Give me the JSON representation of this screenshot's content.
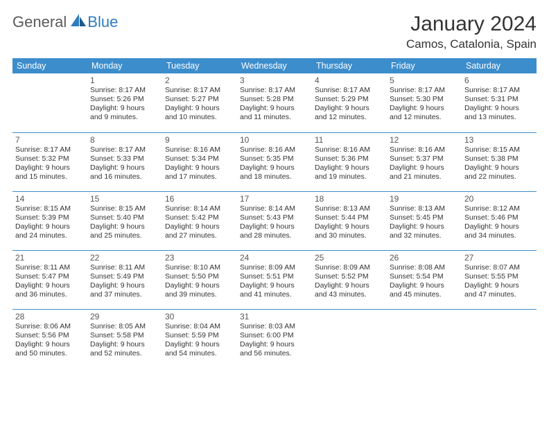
{
  "brand": {
    "word1": "General",
    "word2": "Blue"
  },
  "title": "January 2024",
  "location": "Camos, Catalonia, Spain",
  "colors": {
    "header_bg": "#3c8dcc",
    "header_text": "#ffffff",
    "cell_border": "#3c8dcc",
    "text": "#333333",
    "brand_gray": "#5a5a5a",
    "brand_blue": "#2e7cbf",
    "background": "#ffffff"
  },
  "weekday_headers": [
    "Sunday",
    "Monday",
    "Tuesday",
    "Wednesday",
    "Thursday",
    "Friday",
    "Saturday"
  ],
  "start_weekday": 1,
  "days": [
    {
      "n": "1",
      "sunrise": "8:17 AM",
      "sunset": "5:26 PM",
      "dl1": "Daylight: 9 hours",
      "dl2": "and 9 minutes."
    },
    {
      "n": "2",
      "sunrise": "8:17 AM",
      "sunset": "5:27 PM",
      "dl1": "Daylight: 9 hours",
      "dl2": "and 10 minutes."
    },
    {
      "n": "3",
      "sunrise": "8:17 AM",
      "sunset": "5:28 PM",
      "dl1": "Daylight: 9 hours",
      "dl2": "and 11 minutes."
    },
    {
      "n": "4",
      "sunrise": "8:17 AM",
      "sunset": "5:29 PM",
      "dl1": "Daylight: 9 hours",
      "dl2": "and 12 minutes."
    },
    {
      "n": "5",
      "sunrise": "8:17 AM",
      "sunset": "5:30 PM",
      "dl1": "Daylight: 9 hours",
      "dl2": "and 12 minutes."
    },
    {
      "n": "6",
      "sunrise": "8:17 AM",
      "sunset": "5:31 PM",
      "dl1": "Daylight: 9 hours",
      "dl2": "and 13 minutes."
    },
    {
      "n": "7",
      "sunrise": "8:17 AM",
      "sunset": "5:32 PM",
      "dl1": "Daylight: 9 hours",
      "dl2": "and 15 minutes."
    },
    {
      "n": "8",
      "sunrise": "8:17 AM",
      "sunset": "5:33 PM",
      "dl1": "Daylight: 9 hours",
      "dl2": "and 16 minutes."
    },
    {
      "n": "9",
      "sunrise": "8:16 AM",
      "sunset": "5:34 PM",
      "dl1": "Daylight: 9 hours",
      "dl2": "and 17 minutes."
    },
    {
      "n": "10",
      "sunrise": "8:16 AM",
      "sunset": "5:35 PM",
      "dl1": "Daylight: 9 hours",
      "dl2": "and 18 minutes."
    },
    {
      "n": "11",
      "sunrise": "8:16 AM",
      "sunset": "5:36 PM",
      "dl1": "Daylight: 9 hours",
      "dl2": "and 19 minutes."
    },
    {
      "n": "12",
      "sunrise": "8:16 AM",
      "sunset": "5:37 PM",
      "dl1": "Daylight: 9 hours",
      "dl2": "and 21 minutes."
    },
    {
      "n": "13",
      "sunrise": "8:15 AM",
      "sunset": "5:38 PM",
      "dl1": "Daylight: 9 hours",
      "dl2": "and 22 minutes."
    },
    {
      "n": "14",
      "sunrise": "8:15 AM",
      "sunset": "5:39 PM",
      "dl1": "Daylight: 9 hours",
      "dl2": "and 24 minutes."
    },
    {
      "n": "15",
      "sunrise": "8:15 AM",
      "sunset": "5:40 PM",
      "dl1": "Daylight: 9 hours",
      "dl2": "and 25 minutes."
    },
    {
      "n": "16",
      "sunrise": "8:14 AM",
      "sunset": "5:42 PM",
      "dl1": "Daylight: 9 hours",
      "dl2": "and 27 minutes."
    },
    {
      "n": "17",
      "sunrise": "8:14 AM",
      "sunset": "5:43 PM",
      "dl1": "Daylight: 9 hours",
      "dl2": "and 28 minutes."
    },
    {
      "n": "18",
      "sunrise": "8:13 AM",
      "sunset": "5:44 PM",
      "dl1": "Daylight: 9 hours",
      "dl2": "and 30 minutes."
    },
    {
      "n": "19",
      "sunrise": "8:13 AM",
      "sunset": "5:45 PM",
      "dl1": "Daylight: 9 hours",
      "dl2": "and 32 minutes."
    },
    {
      "n": "20",
      "sunrise": "8:12 AM",
      "sunset": "5:46 PM",
      "dl1": "Daylight: 9 hours",
      "dl2": "and 34 minutes."
    },
    {
      "n": "21",
      "sunrise": "8:11 AM",
      "sunset": "5:47 PM",
      "dl1": "Daylight: 9 hours",
      "dl2": "and 36 minutes."
    },
    {
      "n": "22",
      "sunrise": "8:11 AM",
      "sunset": "5:49 PM",
      "dl1": "Daylight: 9 hours",
      "dl2": "and 37 minutes."
    },
    {
      "n": "23",
      "sunrise": "8:10 AM",
      "sunset": "5:50 PM",
      "dl1": "Daylight: 9 hours",
      "dl2": "and 39 minutes."
    },
    {
      "n": "24",
      "sunrise": "8:09 AM",
      "sunset": "5:51 PM",
      "dl1": "Daylight: 9 hours",
      "dl2": "and 41 minutes."
    },
    {
      "n": "25",
      "sunrise": "8:09 AM",
      "sunset": "5:52 PM",
      "dl1": "Daylight: 9 hours",
      "dl2": "and 43 minutes."
    },
    {
      "n": "26",
      "sunrise": "8:08 AM",
      "sunset": "5:54 PM",
      "dl1": "Daylight: 9 hours",
      "dl2": "and 45 minutes."
    },
    {
      "n": "27",
      "sunrise": "8:07 AM",
      "sunset": "5:55 PM",
      "dl1": "Daylight: 9 hours",
      "dl2": "and 47 minutes."
    },
    {
      "n": "28",
      "sunrise": "8:06 AM",
      "sunset": "5:56 PM",
      "dl1": "Daylight: 9 hours",
      "dl2": "and 50 minutes."
    },
    {
      "n": "29",
      "sunrise": "8:05 AM",
      "sunset": "5:58 PM",
      "dl1": "Daylight: 9 hours",
      "dl2": "and 52 minutes."
    },
    {
      "n": "30",
      "sunrise": "8:04 AM",
      "sunset": "5:59 PM",
      "dl1": "Daylight: 9 hours",
      "dl2": "and 54 minutes."
    },
    {
      "n": "31",
      "sunrise": "8:03 AM",
      "sunset": "6:00 PM",
      "dl1": "Daylight: 9 hours",
      "dl2": "and 56 minutes."
    }
  ]
}
